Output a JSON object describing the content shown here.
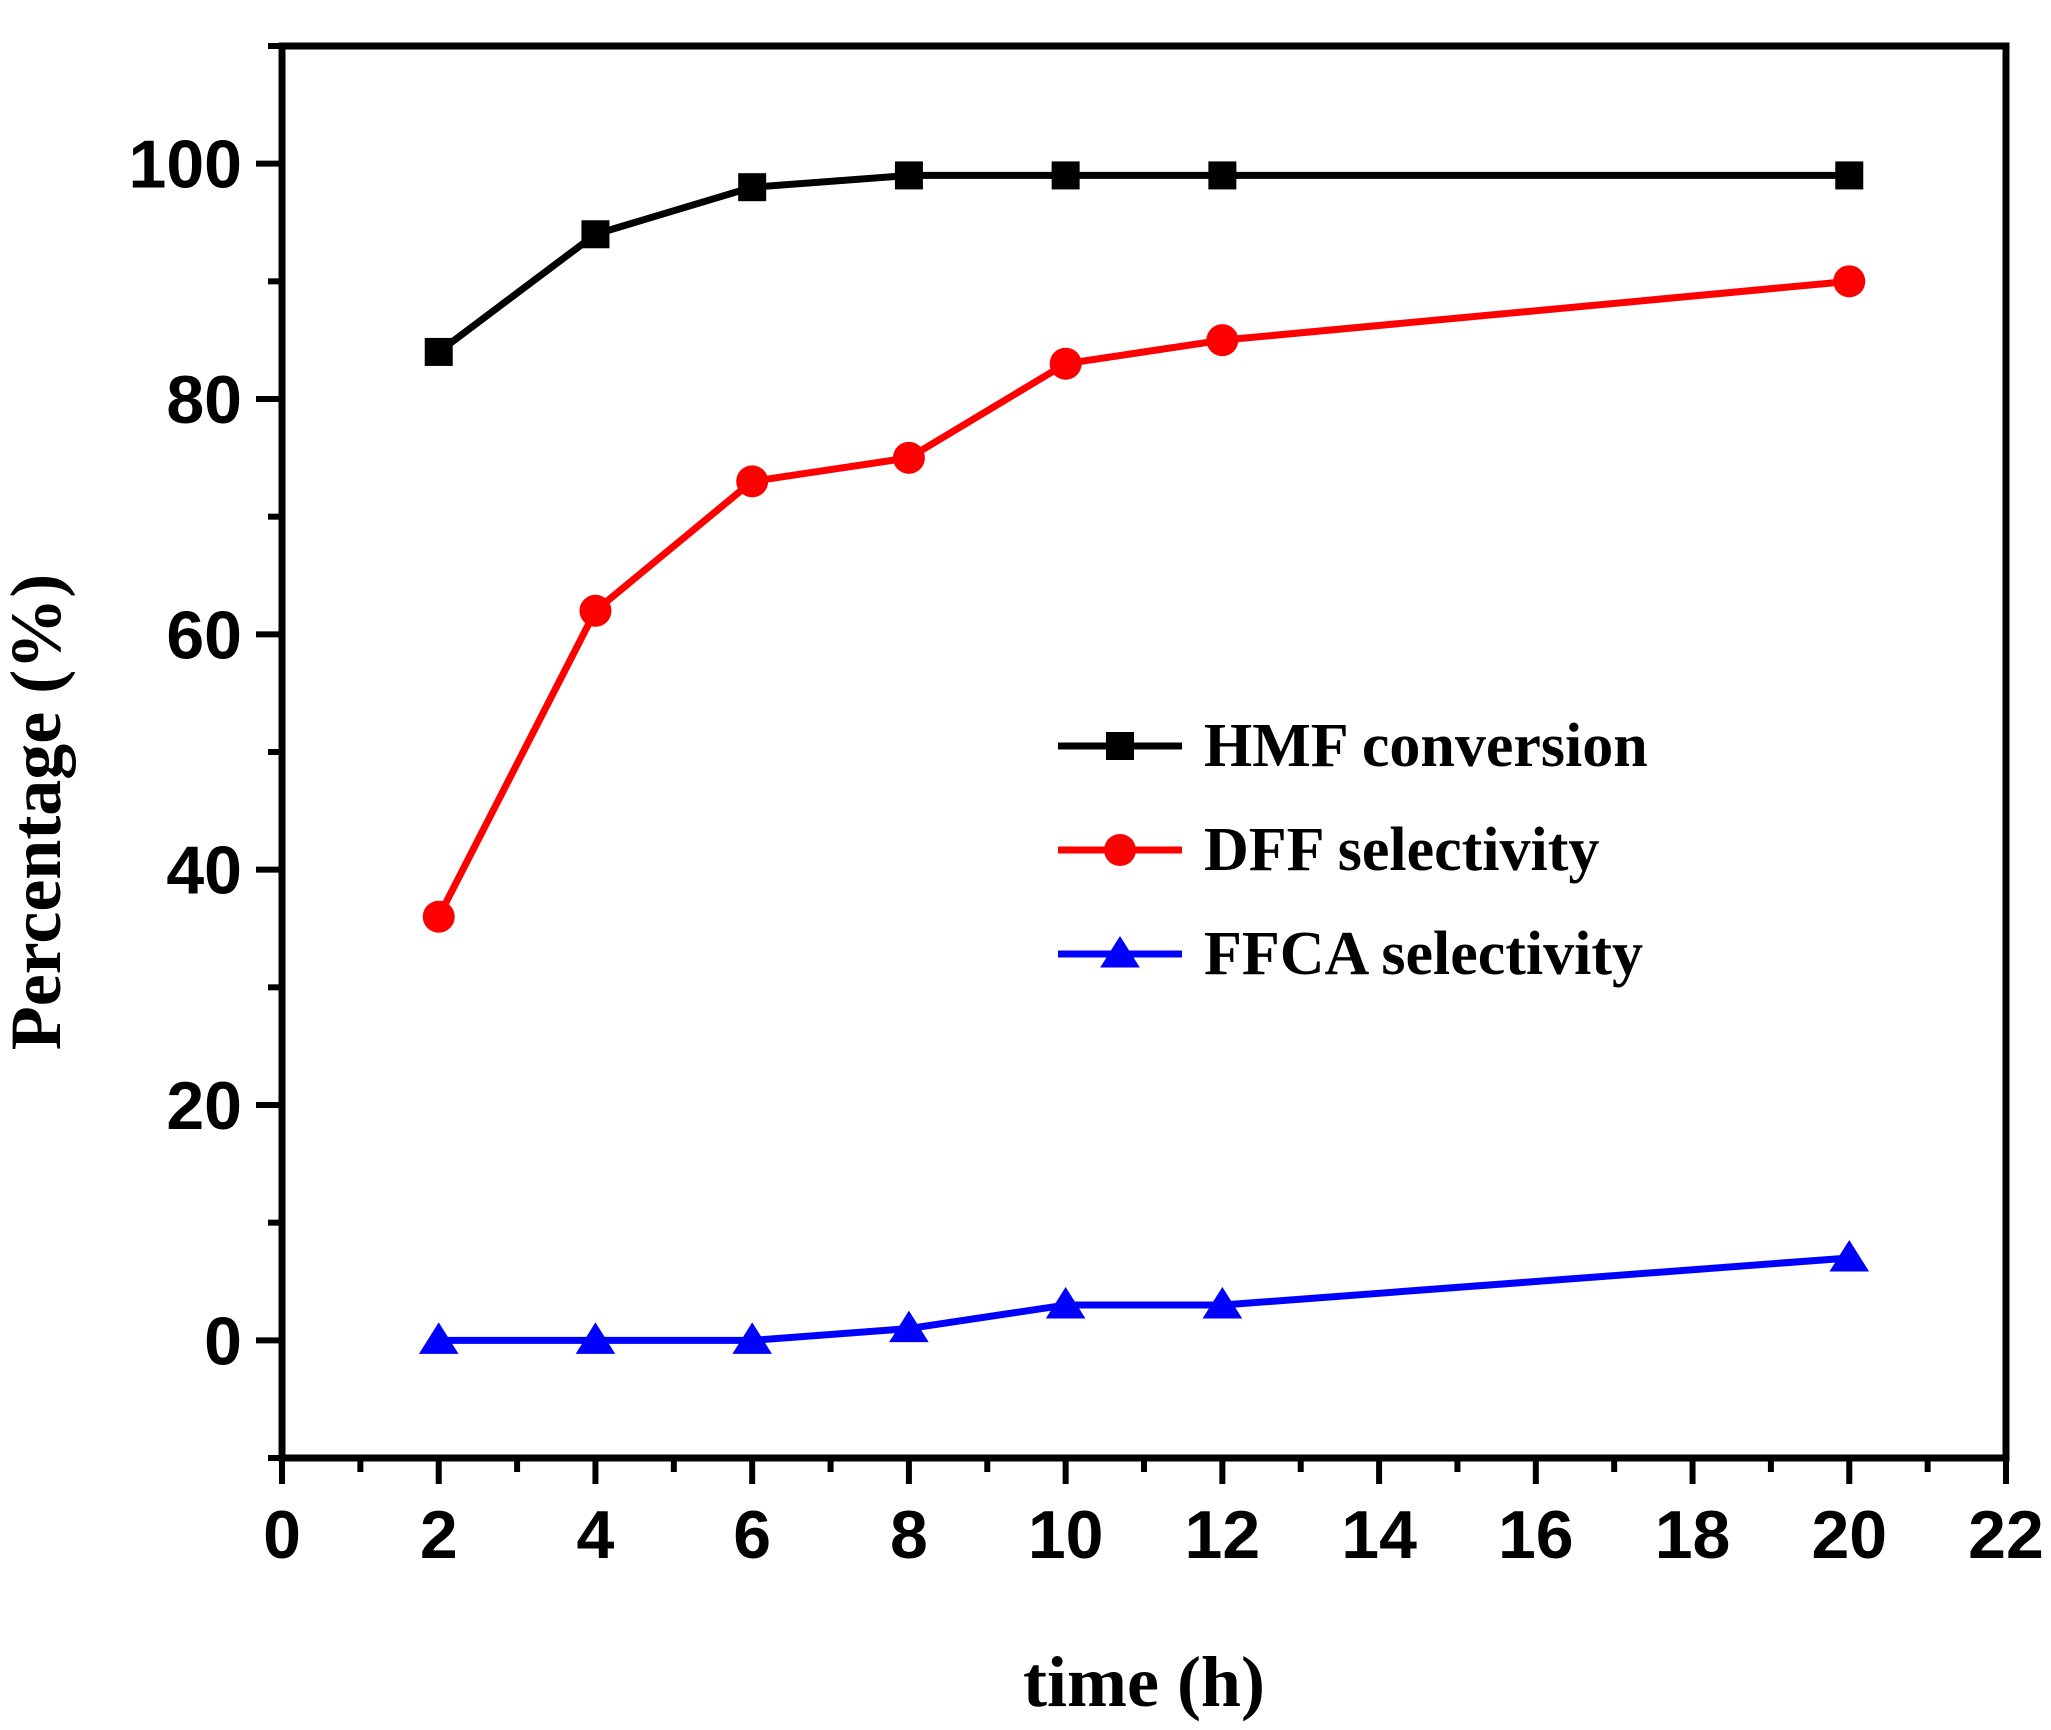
{
  "chart_data": {
    "type": "line",
    "title": "",
    "xlabel": "time (h)",
    "ylabel": "Percentage (%)",
    "xlim": [
      0,
      22
    ],
    "ylim": [
      -10,
      110
    ],
    "xticks": [
      0,
      2,
      4,
      6,
      8,
      10,
      12,
      14,
      16,
      18,
      20,
      22
    ],
    "yticks": [
      0,
      20,
      40,
      60,
      80,
      100
    ],
    "grid": false,
    "legend_position": "center-right",
    "x": [
      2,
      4,
      6,
      8,
      10,
      12,
      20
    ],
    "series": [
      {
        "name": "HMF conversion",
        "color": "#000000",
        "marker": "square",
        "values": [
          84,
          94,
          98,
          99,
          99,
          99,
          99
        ]
      },
      {
        "name": "DFF selectivity",
        "color": "#ff0000",
        "marker": "circle",
        "values": [
          36,
          62,
          73,
          75,
          83,
          85,
          90
        ]
      },
      {
        "name": "FFCA selectivity",
        "color": "#0000ff",
        "marker": "triangle",
        "values": [
          0,
          0,
          0,
          1,
          3,
          3,
          7
        ]
      }
    ]
  }
}
